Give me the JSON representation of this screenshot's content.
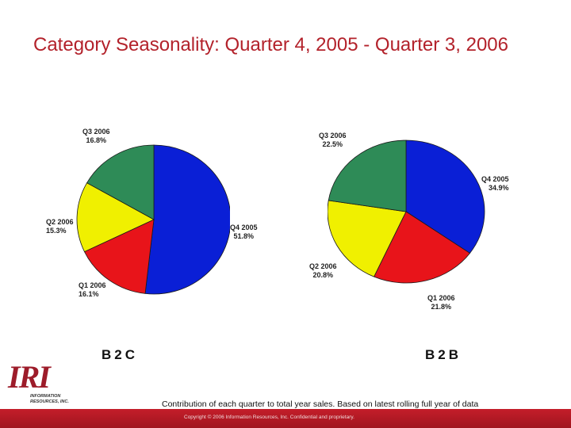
{
  "slide": {
    "title": "Category Seasonality: Quarter 4, 2005 - Quarter 3, 2006",
    "caption": "Contribution of each quarter to total year sales. Based on latest rolling full year of data",
    "copyright": "Copyright © 2006 Information Resources, Inc. Confidential and proprietary."
  },
  "logo": {
    "letters": "IRI",
    "subtitle_line1": "INFORMATION",
    "subtitle_line2": "RESOURCES, INC."
  },
  "colors": {
    "title": "#b3222b",
    "q4_2005": "#0a1fd6",
    "q1_2006": "#e8141a",
    "q2_2006": "#f0f000",
    "q3_2006": "#2e8b57",
    "footer": "#b01a24"
  },
  "chart_data": [
    {
      "type": "pie",
      "name": "B2C",
      "slices": [
        {
          "label": "Q4 2005",
          "value": 51.8,
          "display": "51.8%"
        },
        {
          "label": "Q1 2006",
          "value": 16.1,
          "display": "16.1%"
        },
        {
          "label": "Q2 2006",
          "value": 15.3,
          "display": "15.3%"
        },
        {
          "label": "Q3 2006",
          "value": 16.8,
          "display": "16.8%"
        }
      ]
    },
    {
      "type": "pie",
      "name": "B2B",
      "slices": [
        {
          "label": "Q4 2005",
          "value": 34.9,
          "display": "34.9%"
        },
        {
          "label": "Q1 2006",
          "value": 21.8,
          "display": "21.8%"
        },
        {
          "label": "Q2 2006",
          "value": 20.8,
          "display": "20.8%"
        },
        {
          "label": "Q3 2006",
          "value": 22.5,
          "display": "22.5%"
        }
      ]
    }
  ]
}
